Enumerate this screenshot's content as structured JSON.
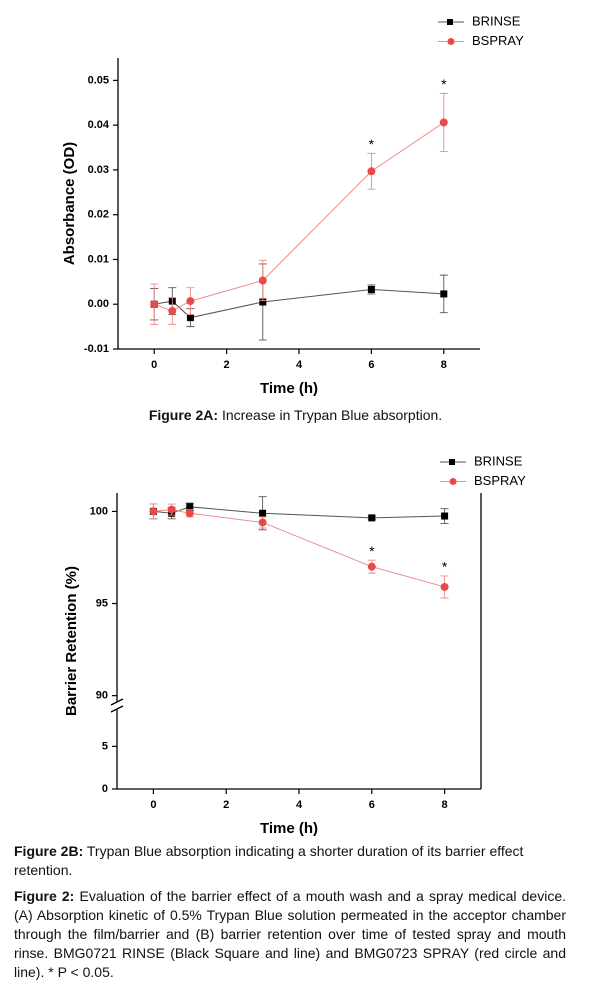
{
  "chart_data": [
    {
      "type": "line",
      "xlabel": "Time (h)",
      "ylabel": "Absorbance (OD)",
      "xlim": [
        -1,
        9
      ],
      "xticks": [
        0,
        2,
        4,
        6,
        8
      ],
      "ylim": [
        -0.01,
        0.055
      ],
      "yticks": [
        -0.01,
        {
          "value": 0,
          "label": "0.00"
        },
        0.01,
        0.02,
        0.03,
        0.04,
        0.05
      ],
      "x": [
        0,
        0.5,
        1,
        3,
        6,
        8
      ],
      "series": [
        {
          "name": "BRINSE",
          "color": "#000000",
          "marker": "square",
          "values": [
            0,
            0.0007,
            -0.003,
            0.0005,
            0.0033,
            0.0023
          ],
          "errors": [
            0.0035,
            0.003,
            0.002,
            0.0085,
            0.001,
            0.0042
          ]
        },
        {
          "name": "BSPRAY",
          "color": "#e84a4a",
          "marker": "circle",
          "values": [
            0,
            -0.0015,
            0.0007,
            0.0053,
            0.0297,
            0.0406
          ],
          "errors": [
            0.0045,
            0.003,
            0.003,
            0.0045,
            0.004,
            0.0065
          ]
        }
      ],
      "annotations": [
        {
          "text": "*",
          "x": 6
        },
        {
          "text": "*",
          "x": 8
        }
      ]
    },
    {
      "type": "line",
      "xlabel": "Time (h)",
      "ylabel": "Barrier Retention (%)",
      "xlim": [
        -1,
        9
      ],
      "xticks": [
        0,
        2,
        4,
        6,
        8
      ],
      "ylim": [
        0,
        101
      ],
      "ybreak": [
        9.5,
        89.6
      ],
      "yticks": [
        0,
        5,
        90,
        95,
        100
      ],
      "box": true,
      "x": [
        0,
        0.5,
        1,
        3,
        6,
        8
      ],
      "series": [
        {
          "name": "BRINSE",
          "color": "#000000",
          "marker": "square",
          "values": [
            100,
            99.9,
            100.25,
            99.9,
            99.65,
            99.75
          ],
          "errors": [
            0.4,
            0.3,
            0.2,
            0.9,
            0.1,
            0.4
          ]
        },
        {
          "name": "BSPRAY",
          "color": "#e84a4a",
          "marker": "circle",
          "values": [
            100,
            100.1,
            99.9,
            99.4,
            97.0,
            95.9
          ],
          "errors": [
            0.4,
            0.3,
            0.2,
            0.3,
            0.35,
            0.6
          ]
        }
      ],
      "annotations": [
        {
          "text": "*",
          "x": 6
        },
        {
          "text": "*",
          "x": 8
        }
      ]
    }
  ],
  "captions": [
    {
      "label": "Figure 2A:",
      "text": "Increase in Trypan Blue absorption."
    },
    {
      "label": "Figure 2B:",
      "text": "Trypan Blue absorption indicating a shorter duration of its barrier effect retention."
    },
    {
      "label": "Figure 2:",
      "text": "Evaluation of the barrier effect of a mouth wash and a spray medical device. (A) Absorption kinetic of 0.5% Trypan Blue solution permeated in the acceptor chamber through the film/barrier and (B) barrier retention over time of tested spray and mouth rinse. BMG0721 RINSE (Black Square and line) and BMG0723 SPRAY (red circle and line). * P < 0.05."
    }
  ]
}
